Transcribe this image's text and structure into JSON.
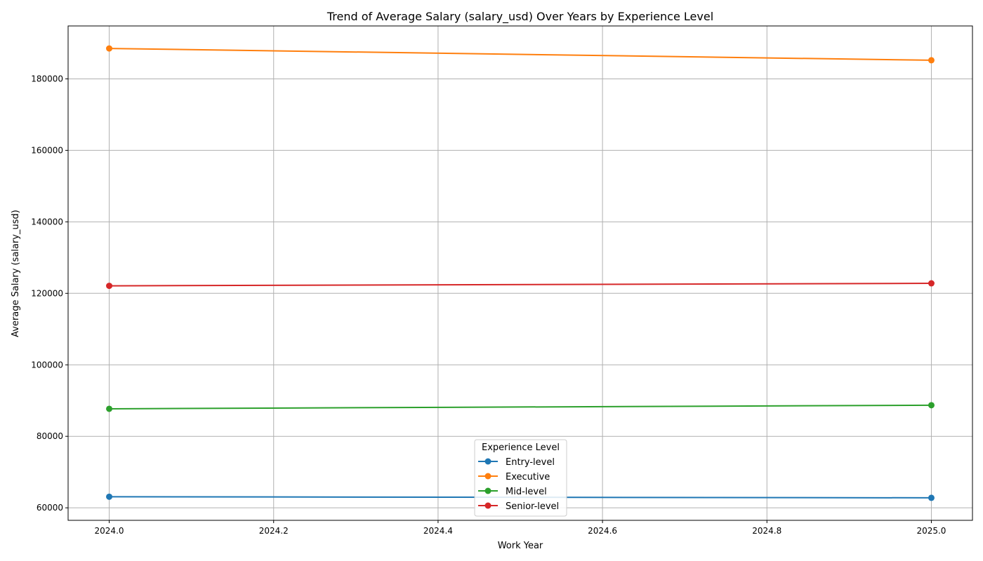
{
  "chart_data": {
    "type": "line",
    "title": "Trend of Average Salary (salary_usd) Over Years by Experience Level",
    "xlabel": "Work Year",
    "ylabel": "Average Salary (salary_usd)",
    "xlim": [
      2023.95,
      2025.05
    ],
    "ylim": [
      56500,
      194800
    ],
    "x_ticks": [
      2024.0,
      2024.2,
      2024.4,
      2024.6,
      2024.8,
      2025.0
    ],
    "x_tick_labels": [
      "2024.0",
      "2024.2",
      "2024.4",
      "2024.6",
      "2024.8",
      "2025.0"
    ],
    "y_ticks": [
      60000,
      80000,
      100000,
      120000,
      140000,
      160000,
      180000
    ],
    "y_tick_labels": [
      "60000",
      "80000",
      "100000",
      "120000",
      "140000",
      "160000",
      "180000"
    ],
    "grid": true,
    "legend": {
      "title": "Experience Level",
      "placement": "lower-center"
    },
    "x": [
      2024,
      2025
    ],
    "series": [
      {
        "name": "Entry-level",
        "values": [
          63100,
          62800
        ],
        "color": "#1f77b4"
      },
      {
        "name": "Executive",
        "values": [
          188500,
          185200
        ],
        "color": "#ff7f0e"
      },
      {
        "name": "Mid-level",
        "values": [
          87700,
          88700
        ],
        "color": "#2ca02c"
      },
      {
        "name": "Senior-level",
        "values": [
          122100,
          122800
        ],
        "color": "#d62728"
      }
    ]
  }
}
